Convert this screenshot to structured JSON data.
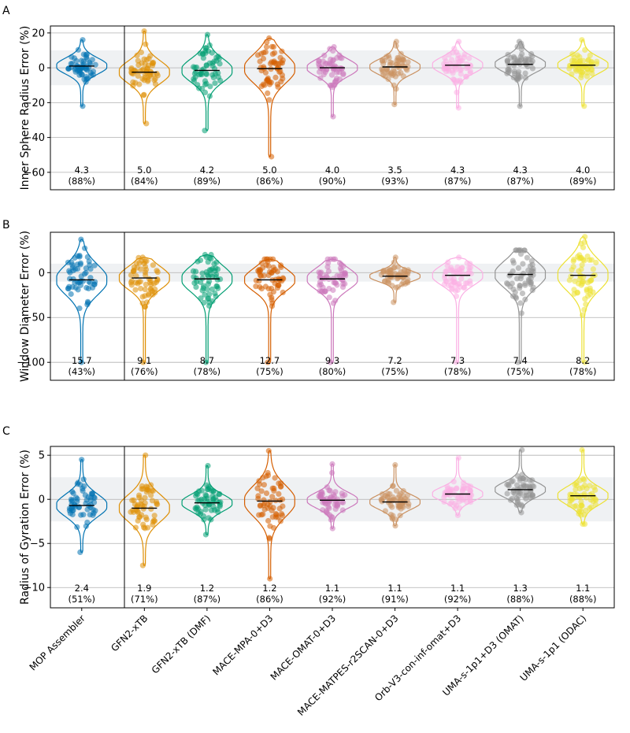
{
  "chart_data": {
    "type": "violin",
    "categories": [
      "MOP Assembler",
      "GFN2-xTB",
      "GFN2-xTB (DMF)",
      "MACE-MPA-0+D3",
      "MACE-OMAT-0+D3",
      "MACE-MATPES-r2SCAN-0+D3",
      "Orb-V3-con-inf-omat+D3",
      "UMA-s-1p1+D3 (OMAT)",
      "UMA-s-1p1 (ODAC)"
    ],
    "colors": [
      "#0173b2",
      "#de8f05",
      "#029e73",
      "#d55e00",
      "#cc78bc",
      "#ca9161",
      "#fbafe4",
      "#949494",
      "#ece133"
    ],
    "panels": [
      {
        "label": "A",
        "ylabel": "Inner Sphere Radius Error (%)",
        "ylim": [
          -70,
          24
        ],
        "yticks": [
          "20",
          "0",
          "−20",
          "−40",
          "−60"
        ],
        "ytick_values": [
          20,
          0,
          -20,
          -40,
          -60
        ],
        "shaded_band": [
          -10,
          10
        ],
        "grid": true,
        "medians": [
          1,
          -2.5,
          -1.5,
          -0.5,
          0,
          0.5,
          1.5,
          2,
          1.5
        ],
        "ranges": [
          [
            -22,
            16
          ],
          [
            -32,
            21
          ],
          [
            -36,
            19
          ],
          [
            -51,
            17
          ],
          [
            -28,
            12
          ],
          [
            -21,
            15
          ],
          [
            -23,
            15
          ],
          [
            -22,
            15
          ],
          [
            -22,
            16
          ]
        ],
        "values": [
          "4.3",
          "5.0",
          "4.2",
          "5.0",
          "4.0",
          "3.5",
          "4.3",
          "4.3",
          "4.0"
        ],
        "percents": [
          "(88%)",
          "(84%)",
          "(89%)",
          "(86%)",
          "(90%)",
          "(93%)",
          "(87%)",
          "(87%)",
          "(89%)"
        ]
      },
      {
        "label": "B",
        "ylabel": "Window Diameter Error (%)",
        "ylim": [
          -120,
          45
        ],
        "yticks": [
          "0",
          "−50",
          "−100"
        ],
        "ytick_values": [
          0,
          -50,
          -100
        ],
        "shaded_band": [
          -10,
          10
        ],
        "grid": true,
        "medians": [
          -8,
          -6,
          -7,
          -8,
          -7,
          -4,
          -3,
          -2,
          -3
        ],
        "ranges": [
          [
            -100,
            37
          ],
          [
            -100,
            17
          ],
          [
            -100,
            20
          ],
          [
            -100,
            15
          ],
          [
            -100,
            15
          ],
          [
            -33,
            17
          ],
          [
            -100,
            17
          ],
          [
            -100,
            25
          ],
          [
            -100,
            40
          ]
        ],
        "values": [
          "15.7",
          "9.1",
          "8.7",
          "12.7",
          "9.3",
          "7.2",
          "7.3",
          "7.4",
          "8.2"
        ],
        "percents": [
          "(43%)",
          "(76%)",
          "(78%)",
          "(75%)",
          "(80%)",
          "(75%)",
          "(78%)",
          "(75%)",
          "(78%)"
        ]
      },
      {
        "label": "C",
        "ylabel": "Radius of Gyration Error (%)",
        "ylim": [
          -12.3,
          6
        ],
        "yticks": [
          "5",
          "0",
          "−5",
          "−10"
        ],
        "ytick_values": [
          5,
          0,
          -5,
          -10
        ],
        "shaded_band": [
          -2.5,
          2.5
        ],
        "grid": true,
        "medians": [
          -0.7,
          -1,
          -0.4,
          -0.2,
          -0.1,
          -0.3,
          0.6,
          1.1,
          0.4
        ],
        "ranges": [
          [
            -6,
            4.5
          ],
          [
            -7.5,
            5
          ],
          [
            -4,
            3.8
          ],
          [
            -9,
            5.5
          ],
          [
            -3.3,
            4
          ],
          [
            -3,
            3.9
          ],
          [
            -1.8,
            4.7
          ],
          [
            -1.5,
            5.6
          ],
          [
            -2.8,
            5.6
          ]
        ],
        "values": [
          "2.4",
          "1.9",
          "1.2",
          "1.2",
          "1.1",
          "1.1",
          "1.1",
          "1.3",
          "1.1"
        ],
        "percents": [
          "(51%)",
          "(71%)",
          "(87%)",
          "(86%)",
          "(92%)",
          "(91%)",
          "(92%)",
          "(88%)",
          "(88%)"
        ]
      }
    ]
  }
}
